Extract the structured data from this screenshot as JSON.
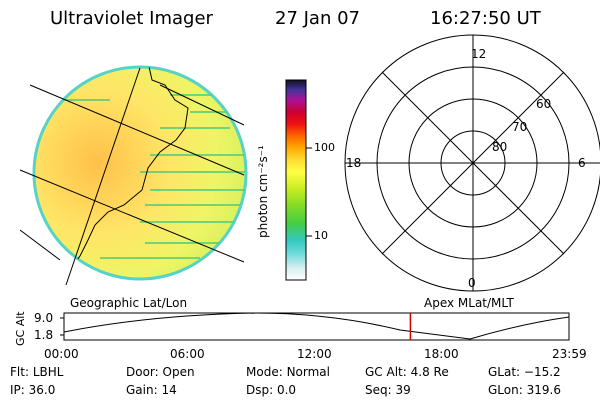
{
  "header": {
    "title": "Ultraviolet Imager",
    "date": "27 Jan 07",
    "time": "16:27:50 UT"
  },
  "colorbar": {
    "label": "photon cm⁻²s⁻¹",
    "ticks": [
      "100",
      "10"
    ]
  },
  "polar": {
    "mlt_labels": [
      "12",
      "18",
      "6",
      "0"
    ],
    "lat_labels": [
      "60",
      "70",
      "80"
    ]
  },
  "timeline": {
    "left_caption": "Geographic Lat/Lon",
    "right_caption": "Apex  MLat/MLT",
    "ylabel": "GC Alt",
    "yticks": [
      "9.0",
      "1.8"
    ],
    "xticks": [
      "00:00",
      "06:00",
      "12:00",
      "18:00",
      "23:59"
    ],
    "marker_color": "#cc0000",
    "marker_time_fraction": 0.686
  },
  "status": {
    "row1": [
      {
        "label": "Flt:",
        "value": "LBHL"
      },
      {
        "label": "Door:",
        "value": "Open"
      },
      {
        "label": "Mode:",
        "value": "Normal"
      },
      {
        "label": "GC Alt:",
        "value": "4.8 Re"
      },
      {
        "label": "GLat:",
        "value": "−15.2"
      }
    ],
    "row2": [
      {
        "label": "IP:",
        "value": "36.0"
      },
      {
        "label": "Gain:",
        "value": "14"
      },
      {
        "label": "Dsp:",
        "value": "0.0"
      },
      {
        "label": "Seq:",
        "value": "39"
      },
      {
        "label": "GLon:",
        "value": "319.6"
      }
    ]
  }
}
